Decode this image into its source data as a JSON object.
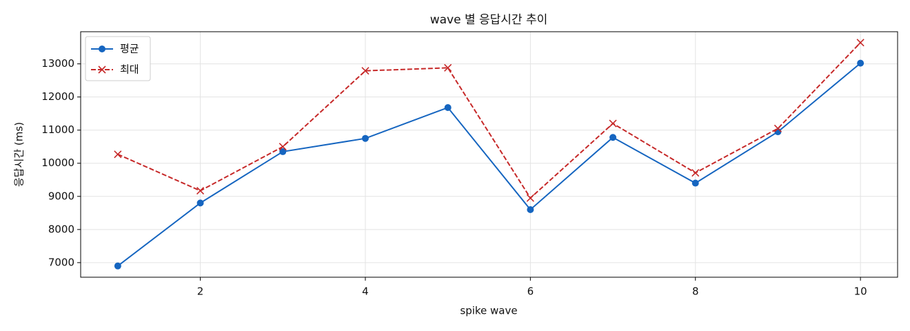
{
  "chart_data": {
    "type": "line",
    "title": "wave 별 응답시간 추이",
    "x_label": "spike wave",
    "y_label": "응답시간 (ms)",
    "x": [
      1,
      2,
      3,
      4,
      5,
      6,
      7,
      8,
      9,
      10
    ],
    "series": [
      {
        "name": "평균",
        "color": "#1565c0",
        "marker": "circle",
        "dashed": false,
        "values": [
          6900,
          8800,
          10350,
          10750,
          11680,
          8600,
          10780,
          9400,
          10950,
          13020
        ]
      },
      {
        "name": "최대",
        "color": "#c62828",
        "marker": "x",
        "dashed": true,
        "values": [
          10270,
          9170,
          10500,
          12790,
          12880,
          8950,
          11200,
          9710,
          11050,
          13640
        ]
      }
    ],
    "xlim": [
      0.55,
      10.45
    ],
    "ylim": [
      6560,
      13970
    ],
    "xticks": [
      2,
      4,
      6,
      8,
      10
    ],
    "yticks": [
      7000,
      8000,
      9000,
      10000,
      11000,
      12000,
      13000
    ],
    "grid": true,
    "legend": "upper-left"
  }
}
